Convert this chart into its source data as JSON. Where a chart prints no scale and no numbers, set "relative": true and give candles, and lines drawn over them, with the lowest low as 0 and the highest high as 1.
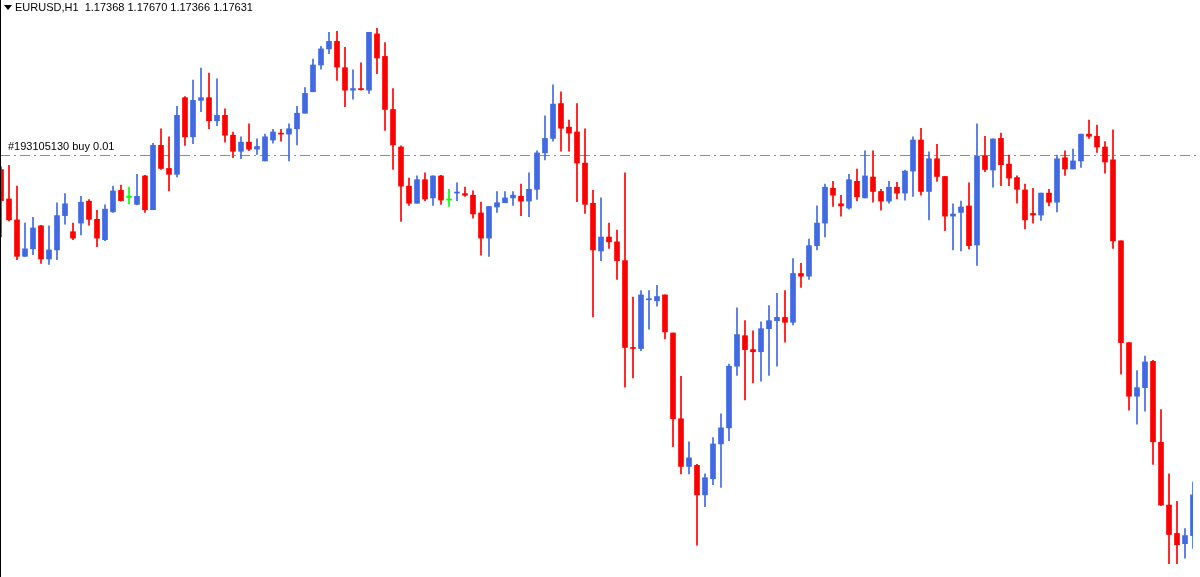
{
  "chart_data": {
    "type": "candlestick",
    "title": "EURUSD,H1  1.17368 1.17670 1.17366 1.17631",
    "relative": true,
    "categories": [
      null,
      null,
      null,
      null,
      null,
      null,
      null,
      null,
      null,
      null,
      null,
      null,
      null,
      null,
      null,
      null,
      null,
      null,
      null,
      null,
      null,
      null,
      null,
      null,
      null,
      null,
      null,
      null,
      null,
      null,
      null,
      null,
      null,
      null,
      null,
      null,
      null,
      null,
      null,
      null,
      null,
      null,
      null,
      null,
      null,
      null,
      null,
      null,
      null,
      null,
      null,
      null,
      null,
      null,
      null,
      null,
      null,
      null,
      null,
      null,
      null,
      null,
      null,
      null,
      null,
      null,
      null,
      null,
      null,
      null,
      null,
      null,
      null,
      null,
      null,
      null,
      null,
      null,
      null,
      null,
      null,
      null,
      null,
      null,
      null,
      null,
      null,
      null,
      null,
      null,
      null,
      null,
      null,
      null,
      null,
      null,
      null,
      null,
      null,
      null,
      null,
      null,
      null,
      null,
      null,
      null,
      null,
      null,
      null,
      null,
      null,
      null,
      null,
      null,
      null,
      null,
      null,
      null,
      null,
      null,
      null,
      null,
      null,
      null,
      null,
      null,
      null,
      null,
      null,
      null,
      null,
      null,
      null,
      null,
      null,
      null,
      null,
      null,
      null,
      null,
      null,
      null,
      null,
      null,
      null,
      null,
      null,
      null,
      null,
      null
    ],
    "ohlc": [
      [
        0.736,
        0.741,
        0.61,
        0.678
      ],
      [
        0.681,
        0.744,
        0.64,
        0.642
      ],
      [
        0.642,
        0.705,
        0.568,
        0.574
      ],
      [
        0.574,
        0.636,
        0.574,
        0.588
      ],
      [
        0.588,
        0.647,
        0.577,
        0.627
      ],
      [
        0.631,
        0.632,
        0.561,
        0.569
      ],
      [
        0.569,
        0.631,
        0.559,
        0.586
      ],
      [
        0.586,
        0.674,
        0.568,
        0.65
      ],
      [
        0.65,
        0.691,
        0.634,
        0.672
      ],
      [
        0.62,
        0.636,
        0.605,
        0.608
      ],
      [
        0.636,
        0.686,
        0.614,
        0.675
      ],
      [
        0.677,
        0.68,
        0.632,
        0.643
      ],
      [
        0.643,
        0.66,
        0.592,
        0.608
      ],
      [
        0.605,
        0.67,
        0.603,
        0.662
      ],
      [
        0.657,
        0.705,
        0.656,
        0.696
      ],
      [
        0.697,
        0.707,
        0.677,
        0.678
      ],
      [
        0.684,
        0.703,
        0.672,
        0.684
      ],
      [
        0.671,
        0.727,
        0.67,
        0.686
      ],
      [
        0.724,
        0.725,
        0.656,
        0.661
      ],
      [
        0.661,
        0.785,
        0.661,
        0.781
      ],
      [
        0.781,
        0.812,
        0.736,
        0.738
      ],
      [
        0.738,
        0.797,
        0.696,
        0.727
      ],
      [
        0.727,
        0.854,
        0.722,
        0.837
      ],
      [
        0.87,
        0.872,
        0.781,
        0.797
      ],
      [
        0.797,
        0.903,
        0.784,
        0.865
      ],
      [
        0.865,
        0.925,
        0.844,
        0.87
      ],
      [
        0.87,
        0.916,
        0.812,
        0.827
      ],
      [
        0.827,
        0.905,
        0.818,
        0.837
      ],
      [
        0.837,
        0.849,
        0.787,
        0.8
      ],
      [
        0.8,
        0.806,
        0.758,
        0.77
      ],
      [
        0.77,
        0.797,
        0.756,
        0.787
      ],
      [
        0.787,
        0.821,
        0.771,
        0.774
      ],
      [
        0.774,
        0.793,
        0.764,
        0.779
      ],
      [
        0.752,
        0.802,
        0.752,
        0.797
      ],
      [
        0.791,
        0.811,
        0.785,
        0.806
      ],
      [
        0.803,
        0.811,
        0.789,
        0.802
      ],
      [
        0.802,
        0.821,
        0.752,
        0.812
      ],
      [
        0.812,
        0.854,
        0.782,
        0.841
      ],
      [
        0.841,
        0.889,
        0.841,
        0.878
      ],
      [
        0.881,
        0.942,
        0.881,
        0.931
      ],
      [
        0.931,
        0.966,
        0.923,
        0.961
      ],
      [
        0.961,
        0.992,
        0.952,
        0.975
      ],
      [
        0.975,
        0.994,
        0.902,
        0.927
      ],
      [
        0.926,
        0.964,
        0.853,
        0.884
      ],
      [
        0.884,
        0.922,
        0.867,
        0.887
      ],
      [
        0.887,
        0.935,
        0.884,
        0.885
      ],
      [
        0.884,
        0.992,
        0.878,
        0.992
      ],
      [
        0.989,
        1.0,
        0.915,
        0.944
      ],
      [
        0.947,
        0.973,
        0.809,
        0.848
      ],
      [
        0.848,
        0.887,
        0.736,
        0.782
      ],
      [
        0.778,
        0.78,
        0.639,
        0.705
      ],
      [
        0.705,
        0.72,
        0.669,
        0.673
      ],
      [
        0.673,
        0.724,
        0.673,
        0.717
      ],
      [
        0.717,
        0.73,
        0.678,
        0.681
      ],
      [
        0.683,
        0.724,
        0.669,
        0.724
      ],
      [
        0.724,
        0.725,
        0.671,
        0.679
      ],
      [
        0.679,
        0.699,
        0.667,
        0.679
      ],
      [
        0.692,
        0.711,
        0.678,
        0.694
      ],
      [
        0.691,
        0.703,
        0.686,
        0.688
      ],
      [
        0.688,
        0.696,
        0.645,
        0.653
      ],
      [
        0.655,
        0.675,
        0.576,
        0.608
      ],
      [
        0.608,
        0.667,
        0.574,
        0.667
      ],
      [
        0.666,
        0.695,
        0.656,
        0.674
      ],
      [
        0.674,
        0.695,
        0.674,
        0.683
      ],
      [
        0.683,
        0.695,
        0.669,
        0.688
      ],
      [
        0.686,
        0.709,
        0.65,
        0.677
      ],
      [
        0.677,
        0.73,
        0.648,
        0.699
      ],
      [
        0.699,
        0.771,
        0.68,
        0.767
      ],
      [
        0.767,
        0.836,
        0.754,
        0.794
      ],
      [
        0.794,
        0.894,
        0.789,
        0.858
      ],
      [
        0.859,
        0.881,
        0.77,
        0.813
      ],
      [
        0.815,
        0.828,
        0.77,
        0.804
      ],
      [
        0.806,
        0.859,
        0.676,
        0.748
      ],
      [
        0.748,
        0.812,
        0.654,
        0.671
      ],
      [
        0.673,
        0.697,
        0.461,
        0.586
      ],
      [
        0.584,
        0.683,
        0.566,
        0.61
      ],
      [
        0.61,
        0.636,
        0.589,
        0.601
      ],
      [
        0.601,
        0.623,
        0.531,
        0.566
      ],
      [
        0.566,
        0.73,
        0.33,
        0.404
      ],
      [
        0.404,
        0.498,
        0.347,
        0.402
      ],
      [
        0.402,
        0.51,
        0.398,
        0.502
      ],
      [
        0.493,
        0.51,
        0.438,
        0.494
      ],
      [
        0.491,
        0.52,
        0.481,
        0.499
      ],
      [
        0.502,
        0.502,
        0.42,
        0.433
      ],
      [
        0.431,
        0.431,
        0.219,
        0.271
      ],
      [
        0.271,
        0.35,
        0.168,
        0.182
      ],
      [
        0.182,
        0.228,
        0.168,
        0.198
      ],
      [
        0.184,
        0.186,
        0.035,
        0.129
      ],
      [
        0.129,
        0.168,
        0.107,
        0.161
      ],
      [
        0.159,
        0.236,
        0.148,
        0.224
      ],
      [
        0.224,
        0.28,
        0.143,
        0.254
      ],
      [
        0.254,
        0.373,
        0.23,
        0.369
      ],
      [
        0.369,
        0.478,
        0.352,
        0.428
      ],
      [
        0.426,
        0.454,
        0.306,
        0.4
      ],
      [
        0.4,
        0.435,
        0.338,
        0.396
      ],
      [
        0.396,
        0.452,
        0.341,
        0.439
      ],
      [
        0.439,
        0.482,
        0.352,
        0.454
      ],
      [
        0.454,
        0.505,
        0.369,
        0.46
      ],
      [
        0.46,
        0.51,
        0.414,
        0.451
      ],
      [
        0.451,
        0.57,
        0.446,
        0.542
      ],
      [
        0.542,
        0.561,
        0.516,
        0.537
      ],
      [
        0.537,
        0.606,
        0.531,
        0.594
      ],
      [
        0.594,
        0.668,
        0.586,
        0.636
      ],
      [
        0.636,
        0.709,
        0.61,
        0.703
      ],
      [
        0.701,
        0.714,
        0.667,
        0.688
      ],
      [
        0.672,
        0.688,
        0.649,
        0.668
      ],
      [
        0.664,
        0.727,
        0.662,
        0.717
      ],
      [
        0.714,
        0.737,
        0.678,
        0.685
      ],
      [
        0.683,
        0.771,
        0.683,
        0.724
      ],
      [
        0.722,
        0.771,
        0.675,
        0.695
      ],
      [
        0.695,
        0.699,
        0.66,
        0.677
      ],
      [
        0.677,
        0.714,
        0.673,
        0.703
      ],
      [
        0.703,
        0.712,
        0.681,
        0.692
      ],
      [
        0.692,
        0.735,
        0.679,
        0.733
      ],
      [
        0.733,
        0.797,
        0.686,
        0.791
      ],
      [
        0.791,
        0.813,
        0.688,
        0.695
      ],
      [
        0.695,
        0.769,
        0.642,
        0.756
      ],
      [
        0.756,
        0.783,
        0.714,
        0.723
      ],
      [
        0.723,
        0.723,
        0.622,
        0.649
      ],
      [
        0.649,
        0.672,
        0.586,
        0.653
      ],
      [
        0.656,
        0.677,
        0.584,
        0.666
      ],
      [
        0.668,
        0.711,
        0.588,
        0.594
      ],
      [
        0.595,
        0.821,
        0.557,
        0.761
      ],
      [
        0.761,
        0.798,
        0.732,
        0.736
      ],
      [
        0.735,
        0.793,
        0.703,
        0.793
      ],
      [
        0.794,
        0.804,
        0.706,
        0.745
      ],
      [
        0.746,
        0.763,
        0.706,
        0.72
      ],
      [
        0.721,
        0.724,
        0.673,
        0.699
      ],
      [
        0.698,
        0.709,
        0.625,
        0.642
      ],
      [
        0.654,
        0.701,
        0.636,
        0.651
      ],
      [
        0.651,
        0.692,
        0.641,
        0.692
      ],
      [
        0.692,
        0.699,
        0.668,
        0.675
      ],
      [
        0.675,
        0.763,
        0.657,
        0.756
      ],
      [
        0.758,
        0.771,
        0.725,
        0.737
      ],
      [
        0.737,
        0.774,
        0.737,
        0.752
      ],
      [
        0.752,
        0.802,
        0.74,
        0.802
      ],
      [
        0.802,
        0.828,
        0.794,
        0.798
      ],
      [
        0.798,
        0.819,
        0.768,
        0.778
      ],
      [
        0.778,
        0.788,
        0.729,
        0.75
      ],
      [
        0.754,
        0.81,
        0.589,
        0.603
      ],
      [
        0.603,
        0.603,
        0.354,
        0.413
      ],
      [
        0.413,
        0.413,
        0.287,
        0.313
      ],
      [
        0.313,
        0.361,
        0.261,
        0.329
      ],
      [
        0.329,
        0.388,
        0.285,
        0.377
      ],
      [
        0.378,
        0.38,
        0.186,
        0.228
      ],
      [
        0.227,
        0.288,
        0.109,
        0.11
      ],
      [
        0.11,
        0.168,
        0.0,
        0.055
      ],
      [
        0.057,
        0.117,
        0.0,
        0.036
      ],
      [
        0.038,
        0.066,
        0.011,
        0.053
      ],
      [
        0.053,
        0.153,
        0.029,
        0.129
      ]
    ],
    "colors": [
      "#ff0000",
      "#ff0000",
      "#ff0000",
      "#4169e1",
      "#4169e1",
      "#ff0000",
      "#4169e1",
      "#4169e1",
      "#4169e1",
      "#ff0000",
      "#4169e1",
      "#ff0000",
      "#ff0000",
      "#4169e1",
      "#4169e1",
      "#ff0000",
      "#00ff00",
      "#4169e1",
      "#ff0000",
      "#4169e1",
      "#ff0000",
      "#ff0000",
      "#4169e1",
      "#ff0000",
      "#4169e1",
      "#4169e1",
      "#ff0000",
      "#4169e1",
      "#ff0000",
      "#ff0000",
      "#4169e1",
      "#ff0000",
      "#4169e1",
      "#4169e1",
      "#4169e1",
      "#ff0000",
      "#4169e1",
      "#4169e1",
      "#4169e1",
      "#4169e1",
      "#4169e1",
      "#4169e1",
      "#ff0000",
      "#ff0000",
      "#4169e1",
      "#ff0000",
      "#4169e1",
      "#ff0000",
      "#ff0000",
      "#ff0000",
      "#ff0000",
      "#ff0000",
      "#4169e1",
      "#ff0000",
      "#4169e1",
      "#ff0000",
      "#00ff00",
      "#4169e1",
      "#ff0000",
      "#ff0000",
      "#ff0000",
      "#4169e1",
      "#4169e1",
      "#4169e1",
      "#4169e1",
      "#ff0000",
      "#4169e1",
      "#4169e1",
      "#4169e1",
      "#4169e1",
      "#ff0000",
      "#ff0000",
      "#ff0000",
      "#ff0000",
      "#ff0000",
      "#4169e1",
      "#ff0000",
      "#ff0000",
      "#ff0000",
      "#ff0000",
      "#4169e1",
      "#4169e1",
      "#4169e1",
      "#ff0000",
      "#ff0000",
      "#ff0000",
      "#4169e1",
      "#ff0000",
      "#4169e1",
      "#4169e1",
      "#4169e1",
      "#4169e1",
      "#4169e1",
      "#ff0000",
      "#ff0000",
      "#4169e1",
      "#4169e1",
      "#4169e1",
      "#ff0000",
      "#4169e1",
      "#ff0000",
      "#4169e1",
      "#4169e1",
      "#4169e1",
      "#ff0000",
      "#ff0000",
      "#4169e1",
      "#ff0000",
      "#4169e1",
      "#ff0000",
      "#ff0000",
      "#4169e1",
      "#ff0000",
      "#4169e1",
      "#4169e1",
      "#ff0000",
      "#4169e1",
      "#ff0000",
      "#ff0000",
      "#4169e1",
      "#4169e1",
      "#ff0000",
      "#4169e1",
      "#ff0000",
      "#4169e1",
      "#ff0000",
      "#ff0000",
      "#ff0000",
      "#ff0000",
      "#ff0000",
      "#4169e1",
      "#ff0000",
      "#4169e1",
      "#ff0000",
      "#4169e1",
      "#4169e1",
      "#ff0000",
      "#ff0000",
      "#ff0000",
      "#ff0000",
      "#ff0000",
      "#ff0000",
      "#4169e1",
      "#4169e1",
      "#ff0000",
      "#ff0000",
      "#ff0000",
      "#ff0000",
      "#4169e1",
      "#4169e1"
    ],
    "ref_lines": [
      {
        "axis": "y",
        "value": 0.763,
        "label": "#193105130 buy 0.01",
        "color": "#32cd32",
        "line_style": "dashed"
      }
    ]
  }
}
